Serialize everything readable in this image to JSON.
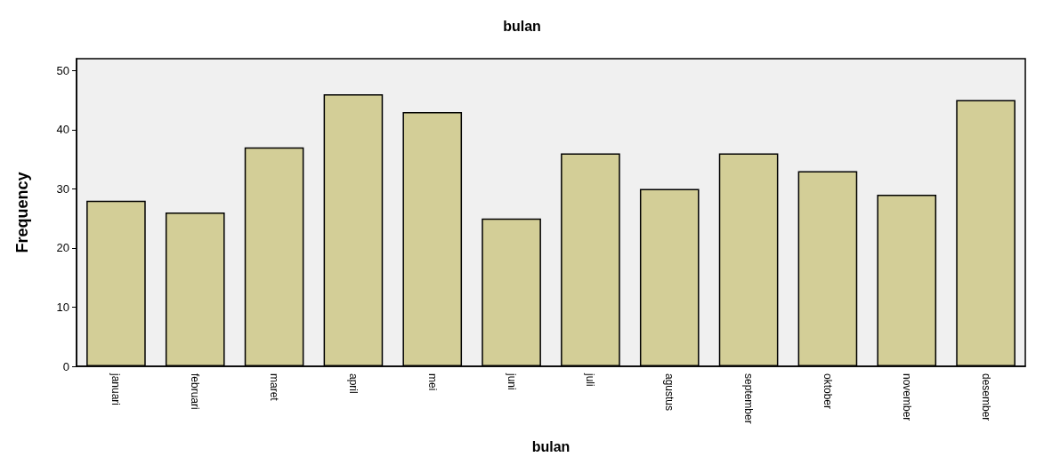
{
  "chart_data": {
    "type": "bar",
    "title": "bulan",
    "xlabel": "bulan",
    "ylabel": "Frequency",
    "categories": [
      "januari",
      "februari",
      "maret",
      "april",
      "mei",
      "juni",
      "juli",
      "agustus",
      "september",
      "oktober",
      "november",
      "desember"
    ],
    "values": [
      28,
      26,
      37,
      46,
      43,
      25,
      36,
      30,
      36,
      33,
      29,
      45
    ],
    "color": "#d3ce97",
    "ylim": [
      0,
      52
    ],
    "yticks": [
      0,
      10,
      20,
      30,
      40,
      50
    ],
    "grid": false
  }
}
